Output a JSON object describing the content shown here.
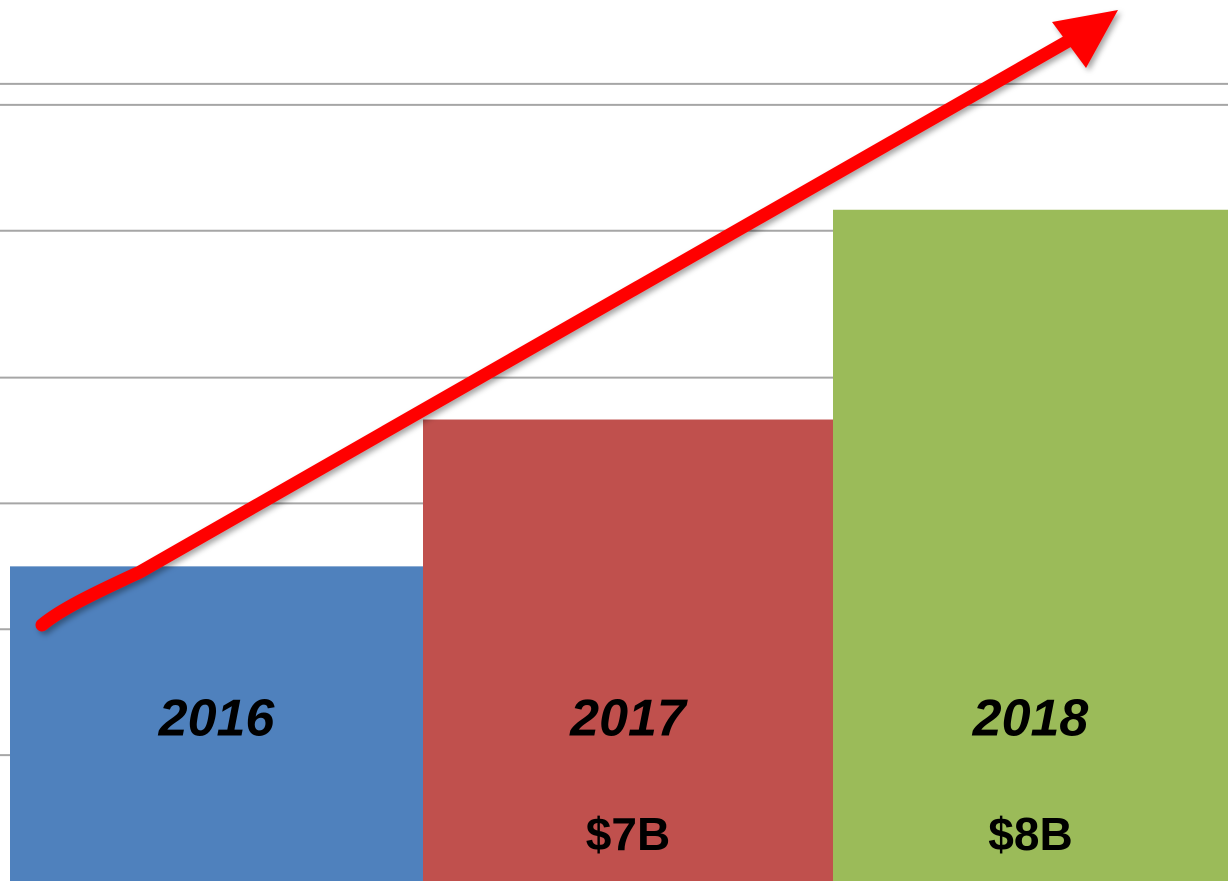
{
  "chart_data": {
    "type": "bar",
    "categories": [
      "2016",
      "2017",
      "2018"
    ],
    "values": [
      6.3,
      7,
      8
    ],
    "value_labels": [
      null,
      "$7B",
      "$8B"
    ],
    "colors": [
      "#4f81bd",
      "#c0504d",
      "#9bbb59"
    ],
    "ylim": [
      4.8,
      9
    ],
    "yticks": [
      5.4,
      6.0,
      6.6,
      7.2,
      7.9,
      8.5,
      8.6
    ],
    "grid": true
  }
}
